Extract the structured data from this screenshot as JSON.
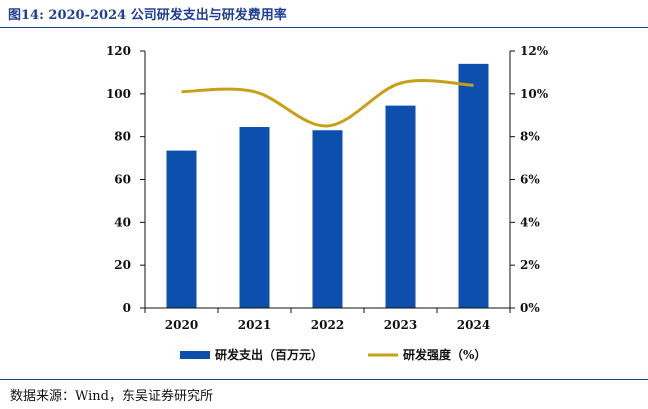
{
  "figure": {
    "title": "图14:  2020-2024 公司研发支出与研发费用率",
    "source": "数据来源：Wind，东吴证券研究所"
  },
  "colors": {
    "bar": "#0d4fad",
    "line": "#c8a018",
    "title": "#1f3f94",
    "axis": "#111111"
  },
  "chart_data": {
    "type": "bar",
    "categories": [
      "2020",
      "2021",
      "2022",
      "2023",
      "2024"
    ],
    "series": [
      {
        "name": "研发支出（百万元）",
        "type": "bar",
        "axis": "left",
        "values": [
          73.5,
          84.5,
          83,
          94.5,
          114
        ]
      },
      {
        "name": "研发强度（%）",
        "type": "line",
        "axis": "right",
        "smooth": true,
        "values": [
          10.1,
          10.1,
          8.5,
          10.5,
          10.4
        ]
      }
    ],
    "y_left": {
      "lim": [
        0,
        120
      ],
      "ticks": [
        "0",
        "20",
        "40",
        "60",
        "80",
        "100",
        "120"
      ]
    },
    "y_right": {
      "lim": [
        0,
        12
      ],
      "ticks": [
        "0%",
        "2%",
        "4%",
        "6%",
        "8%",
        "10%",
        "12%"
      ]
    },
    "grid": false,
    "legend": "bottom-center"
  }
}
